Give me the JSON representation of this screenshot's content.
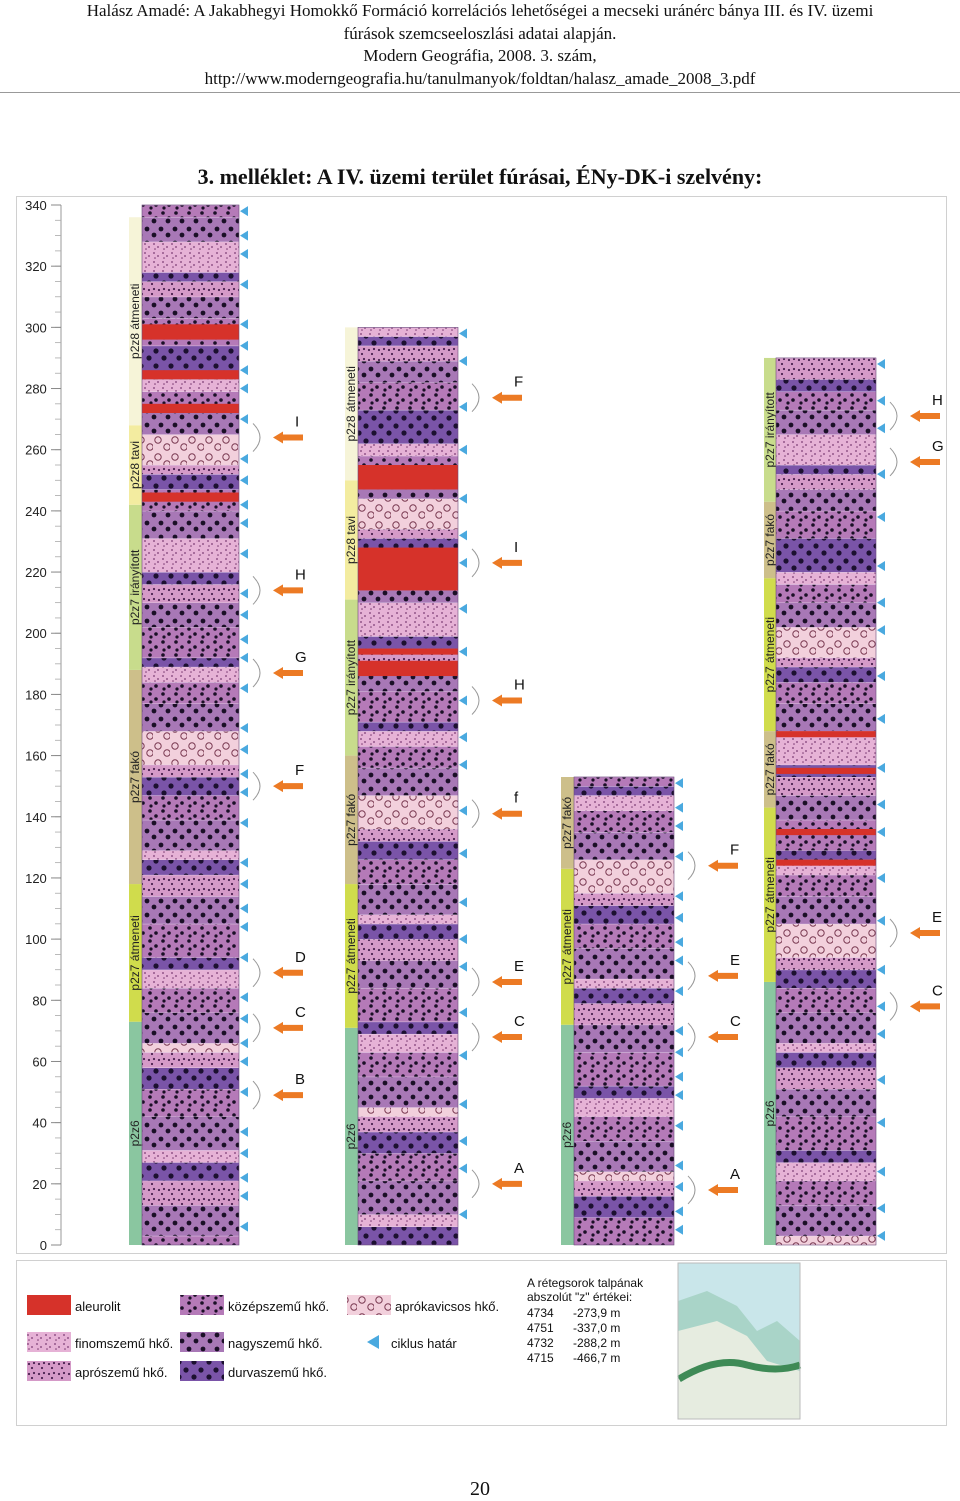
{
  "header": {
    "line1": "Halász Amadé: A Jakabhegyi Homokkő Formáció korrelációs lehetőségei a mecseki uránérc bánya III. és IV. üzemi",
    "line2": "fúrások szemcseeloszlási adatai alapján.",
    "line3": "Modern Geográfia, 2008. 3. szám,",
    "line4": "http://www.moderngeografia.hu/tanulmanyok/foldtan/halasz_amade_2008_3.pdf"
  },
  "title": "3. melléklet: A IV. üzemi terület fúrásai, ÉNy-DK-i szelvény:",
  "axis": {
    "ticks": [
      "340",
      "320",
      "300",
      "280",
      "260",
      "240",
      "220",
      "200",
      "180",
      "160",
      "140",
      "120",
      "100",
      "80",
      "60",
      "40",
      "20",
      "0"
    ],
    "min": 0,
    "max": 340
  },
  "colors": {
    "pz6": "#8ac6a0",
    "pz7_atmeneti": "#d0dc4c",
    "pz7_fako": "#cdbf8a",
    "pz7_iranyitott": "#c8dc8c",
    "pz8_tavi": "#f3eca0",
    "pz8_atmeneti": "#f6f4d8",
    "red": "#d6322a",
    "arrow": "#ec7a24",
    "tri": "#4aa9df"
  },
  "wells": [
    {
      "id": "4734",
      "top": 340,
      "zones": [
        {
          "label": "p2z6",
          "from": 0,
          "to": 73,
          "color": "pz6"
        },
        {
          "label": "p2z7 átmeneti",
          "from": 73,
          "to": 118,
          "color": "pz7_atmeneti"
        },
        {
          "label": "p2z7 fakó",
          "from": 118,
          "to": 188,
          "color": "pz7_fako"
        },
        {
          "label": "p2z7 irányított",
          "from": 188,
          "to": 242,
          "color": "pz7_iranyitott"
        },
        {
          "label": "p2z8 tavi",
          "from": 242,
          "to": 268,
          "color": "pz8_tavi"
        },
        {
          "label": "p2z8 átmeneti",
          "from": 268,
          "to": 336,
          "color": "pz8_atmeneti"
        }
      ],
      "markers": [
        {
          "label": "I",
          "z": 264
        },
        {
          "label": "H",
          "z": 214
        },
        {
          "label": "G",
          "z": 187
        },
        {
          "label": "F",
          "z": 150
        },
        {
          "label": "D",
          "z": 89
        },
        {
          "label": "C",
          "z": 71
        },
        {
          "label": "B",
          "z": 49
        }
      ],
      "reds": [
        [
          296,
          301
        ],
        [
          283,
          286
        ],
        [
          272,
          275
        ],
        [
          243,
          246
        ]
      ]
    },
    {
      "id": "4751",
      "top": 300,
      "zones": [
        {
          "label": "p2z6",
          "from": 0,
          "to": 71,
          "color": "pz6"
        },
        {
          "label": "p2z7 átmeneti",
          "from": 71,
          "to": 118,
          "color": "pz7_atmeneti"
        },
        {
          "label": "p2z7 fakó",
          "from": 118,
          "to": 160,
          "color": "pz7_fako"
        },
        {
          "label": "p2z7 irányított",
          "from": 160,
          "to": 211,
          "color": "pz7_iranyitott"
        },
        {
          "label": "p2z8 tavi",
          "from": 211,
          "to": 250,
          "color": "pz8_tavi"
        },
        {
          "label": "p2z8 átmeneti",
          "from": 250,
          "to": 300,
          "color": "pz8_atmeneti"
        }
      ],
      "markers": [
        {
          "label": "F",
          "z": 277
        },
        {
          "label": "I",
          "z": 223
        },
        {
          "label": "H",
          "z": 178
        },
        {
          "label": "f",
          "z": 141
        },
        {
          "label": "E",
          "z": 86
        },
        {
          "label": "C",
          "z": 68
        },
        {
          "label": "A",
          "z": 20
        }
      ],
      "reds": [
        [
          247,
          255
        ],
        [
          214,
          228
        ],
        [
          186,
          191
        ],
        [
          193,
          195
        ]
      ]
    },
    {
      "id": "4732",
      "top": 153,
      "zones": [
        {
          "label": "p2z6",
          "from": 0,
          "to": 72,
          "color": "pz6"
        },
        {
          "label": "p2z7 átmeneti",
          "from": 72,
          "to": 123,
          "color": "pz7_atmeneti"
        },
        {
          "label": "p2z7 fakó",
          "from": 123,
          "to": 153,
          "color": "pz7_fako"
        }
      ],
      "markers": [
        {
          "label": "F",
          "z": 124
        },
        {
          "label": "E",
          "z": 88
        },
        {
          "label": "C",
          "z": 68
        },
        {
          "label": "A",
          "z": 18
        }
      ],
      "reds": []
    },
    {
      "id": "4715",
      "top": 290,
      "zones": [
        {
          "label": "p2z6",
          "from": 0,
          "to": 86,
          "color": "pz6"
        },
        {
          "label": "p2z7 átmeneti",
          "from": 86,
          "to": 143,
          "color": "pz7_atmeneti"
        },
        {
          "label": "p2z7 fakó",
          "from": 143,
          "to": 168,
          "color": "pz7_fako"
        },
        {
          "label": "p2z7 átmeneti",
          "from": 168,
          "to": 218,
          "color": "pz7_atmeneti"
        },
        {
          "label": "p2z7 fakó",
          "from": 218,
          "to": 243,
          "color": "pz7_fako"
        },
        {
          "label": "p2z7 irányított",
          "from": 243,
          "to": 290,
          "color": "pz7_iranyitott"
        }
      ],
      "markers": [
        {
          "label": "H",
          "z": 271
        },
        {
          "label": "G",
          "z": 256
        },
        {
          "label": "E",
          "z": 102
        },
        {
          "label": "C",
          "z": 78
        }
      ],
      "reds": [
        [
          166,
          168
        ],
        [
          154,
          156
        ],
        [
          134,
          136
        ],
        [
          124,
          126
        ]
      ]
    }
  ],
  "legend": {
    "items": [
      {
        "label": "aleurolit",
        "kind": "red"
      },
      {
        "label": "finomszemű hkő.",
        "kind": "fine"
      },
      {
        "label": "aprószemű hkő.",
        "kind": "small"
      },
      {
        "label": "középszemű hkő.",
        "kind": "medium"
      },
      {
        "label": "nagyszemű hkő.",
        "kind": "large"
      },
      {
        "label": "durvaszemű hkő.",
        "kind": "coarse"
      },
      {
        "label": "aprókavicsos hkő.",
        "kind": "pebble"
      },
      {
        "label": "ciklus határ",
        "kind": "tri"
      }
    ],
    "table_title1": "A rétegsorok talpának",
    "table_title2": "abszolút \"z\" értékei:",
    "rows": [
      {
        "well": "4734",
        "value": "-273,9 m"
      },
      {
        "well": "4751",
        "value": "-337,0 m"
      },
      {
        "well": "4732",
        "value": "-288,2 m"
      },
      {
        "well": "4715",
        "value": "-466,7 m"
      }
    ]
  },
  "page_number": "20"
}
